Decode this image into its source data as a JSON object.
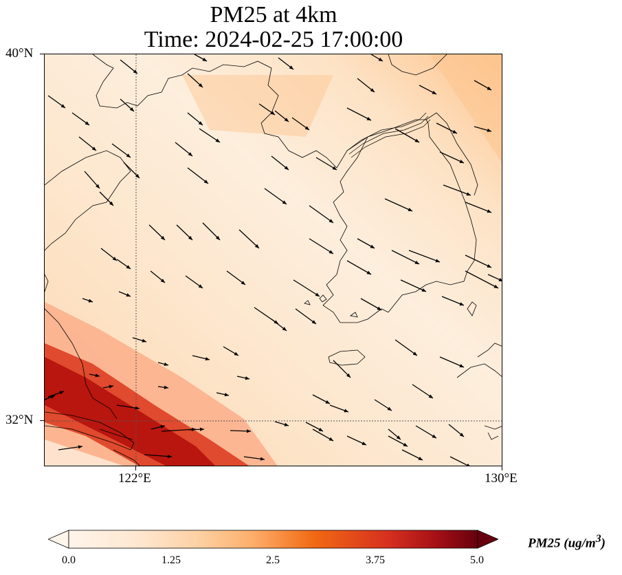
{
  "title": {
    "line1": "PM25 at 4km",
    "line2": "Time: 2024-02-25 17:00:00"
  },
  "axes": {
    "lat_labels": [
      "40°N",
      "32°N"
    ],
    "lon_labels": [
      "122°E",
      "130°E"
    ],
    "lat_range": [
      31,
      40
    ],
    "lon_range": [
      120,
      130
    ],
    "gridlines": "dotted at 122°E and 32°N"
  },
  "colorbar": {
    "label": "PM25 (ug/m",
    "label_sup": "3",
    "label_close": ")",
    "ticks": [
      "0.0",
      "1.25",
      "2.5",
      "3.75",
      "5.0"
    ],
    "range": [
      0,
      5
    ],
    "colormap": [
      "#fff5eb",
      "#fdd0a2",
      "#fdae6b",
      "#f16913",
      "#d94801",
      "#a50f15",
      "#67000d"
    ],
    "extend": "both"
  },
  "field": {
    "variable": "PM25",
    "pattern": "high values band along southwest corner (~4.5), background ~1.5-2.0 over sea, ~1.0 near Korea"
  },
  "colors": {
    "arrow": "#000000",
    "coastline": "#000000",
    "background_low": "#fde2c4",
    "band_high": "#b5140b"
  }
}
